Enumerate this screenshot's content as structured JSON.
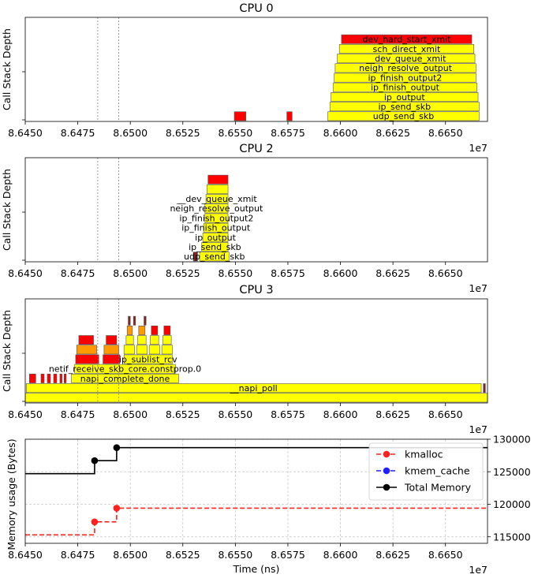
{
  "chart_data": [
    {
      "type": "flamegraph",
      "title": "CPU 0",
      "ylabel": "Call Stack Depth",
      "xlim": [
        86450000,
        86670000
      ],
      "x_offset_label": "1e7",
      "xticks": [
        "8.6450",
        "8.6475",
        "8.6500",
        "8.6525",
        "8.6550",
        "8.6575",
        "8.6600",
        "8.6625",
        "8.6650"
      ],
      "vlines": [
        86484500,
        86494500
      ],
      "bars": [
        {
          "label": "udp_send_skb",
          "start": 86594000,
          "end": 86666000,
          "depth": 0,
          "color": "#ffff00"
        },
        {
          "label": "ip_send_skb",
          "start": 86595000,
          "end": 86666000,
          "depth": 1,
          "color": "#ffff00"
        },
        {
          "label": "ip_output",
          "start": 86595500,
          "end": 86665500,
          "depth": 2,
          "color": "#ffff00"
        },
        {
          "label": "ip_finish_output",
          "start": 86596500,
          "end": 86665000,
          "depth": 3,
          "color": "#ffff00"
        },
        {
          "label": "ip_finish_output2",
          "start": 86597000,
          "end": 86664500,
          "depth": 4,
          "color": "#ffff00"
        },
        {
          "label": "neigh_resolve_output",
          "start": 86597500,
          "end": 86664500,
          "depth": 5,
          "color": "#ffff00"
        },
        {
          "label": "__dev_queue_xmit",
          "start": 86598500,
          "end": 86664000,
          "depth": 6,
          "color": "#ffff00"
        },
        {
          "label": "sch_direct_xmit",
          "start": 86599500,
          "end": 86663500,
          "depth": 7,
          "color": "#ffff00"
        },
        {
          "label": "dev_hard_start_xmit",
          "start": 86600500,
          "end": 86662500,
          "depth": 8,
          "color": "#ff0000"
        },
        {
          "label": "",
          "start": 86549500,
          "end": 86555000,
          "depth": 0,
          "color": "#ff0000"
        },
        {
          "label": "",
          "start": 86574500,
          "end": 86577000,
          "depth": 0,
          "color": "#ff0000"
        }
      ]
    },
    {
      "type": "flamegraph",
      "title": "CPU 2",
      "ylabel": "Call Stack Depth",
      "xlim": [
        86450000,
        86670000
      ],
      "x_offset_label": "1e7",
      "xticks": [
        "8.6450",
        "8.6475",
        "8.6500",
        "8.6525",
        "8.6550",
        "8.6575",
        "8.6600",
        "8.6625",
        "8.6650"
      ],
      "vlines": [
        86484500,
        86494500
      ],
      "bars": [
        {
          "label": "udp_send_skb",
          "start": 86533000,
          "end": 86547000,
          "depth": 0,
          "color": "#ffff00"
        },
        {
          "label": "ip_send_skb",
          "start": 86534000,
          "end": 86546500,
          "depth": 1,
          "color": "#ffff00"
        },
        {
          "label": "ip_output",
          "start": 86534500,
          "end": 86546500,
          "depth": 2,
          "color": "#ffff00"
        },
        {
          "label": "ip_finish_output",
          "start": 86535000,
          "end": 86546500,
          "depth": 3,
          "color": "#ffff00"
        },
        {
          "label": "ip_finish_output2",
          "start": 86535500,
          "end": 86546500,
          "depth": 4,
          "color": "#ffff00"
        },
        {
          "label": "neigh_resolve_output",
          "start": 86535500,
          "end": 86546500,
          "depth": 5,
          "color": "#ffff00"
        },
        {
          "label": "__dev_queue_xmit",
          "start": 86536000,
          "end": 86546500,
          "depth": 6,
          "color": "#ffff00"
        },
        {
          "label": "",
          "start": 86536500,
          "end": 86546500,
          "depth": 7,
          "color": "#ffff00"
        },
        {
          "label": "",
          "start": 86537000,
          "end": 86546500,
          "depth": 8,
          "color": "#ff0000"
        },
        {
          "label": "",
          "start": 86530000,
          "end": 86532000,
          "depth": 0,
          "color": "#8b2020"
        }
      ]
    },
    {
      "type": "flamegraph",
      "title": "CPU 3",
      "ylabel": "Call Stack Depth",
      "xlim": [
        86450000,
        86670000
      ],
      "x_offset_label": "1e7",
      "xticks": [
        "8.6450",
        "8.6475",
        "8.6500",
        "8.6525",
        "8.6550",
        "8.6575",
        "8.6600",
        "8.6625",
        "8.6650"
      ],
      "vlines": [
        86484500,
        86494500
      ],
      "bars": [
        {
          "label": "",
          "start": 86450000,
          "end": 86670000,
          "depth": 0,
          "color": "#ffff00"
        },
        {
          "label": "__napi_poll",
          "start": 86450500,
          "end": 86667000,
          "depth": 1,
          "color": "#ffff00"
        },
        {
          "label": "napi_complete_done",
          "start": 86472000,
          "end": 86523000,
          "depth": 2,
          "color": "#ffff00"
        },
        {
          "label": "netif_receive_skb_core.constprop.0",
          "start": 86473500,
          "end": 86521500,
          "depth": 3,
          "color": "#ffff00"
        },
        {
          "label": "ip_sublist_rcv",
          "start": 86497000,
          "end": 86520000,
          "depth": 4,
          "color": "#ffff00"
        },
        {
          "label": "",
          "start": 86474000,
          "end": 86485000,
          "depth": 4,
          "color": "#ff0000"
        },
        {
          "label": "",
          "start": 86474500,
          "end": 86484000,
          "depth": 5,
          "color": "#ff9900"
        },
        {
          "label": "",
          "start": 86475500,
          "end": 86482500,
          "depth": 6,
          "color": "#ff0000"
        },
        {
          "label": "",
          "start": 86487000,
          "end": 86495000,
          "depth": 4,
          "color": "#ff0000"
        },
        {
          "label": "",
          "start": 86487500,
          "end": 86494500,
          "depth": 5,
          "color": "#ff9900"
        },
        {
          "label": "",
          "start": 86488500,
          "end": 86493500,
          "depth": 6,
          "color": "#ff0000"
        },
        {
          "label": "",
          "start": 86497000,
          "end": 86502000,
          "depth": 5,
          "color": "#ffff00"
        },
        {
          "label": "",
          "start": 86498000,
          "end": 86501500,
          "depth": 6,
          "color": "#ffff00"
        },
        {
          "label": "",
          "start": 86498500,
          "end": 86501000,
          "depth": 7,
          "color": "#ff9900"
        },
        {
          "label": "",
          "start": 86503000,
          "end": 86508000,
          "depth": 5,
          "color": "#ffff00"
        },
        {
          "label": "",
          "start": 86503500,
          "end": 86507500,
          "depth": 6,
          "color": "#ffff00"
        },
        {
          "label": "",
          "start": 86504000,
          "end": 86507000,
          "depth": 7,
          "color": "#ff9900"
        },
        {
          "label": "",
          "start": 86509000,
          "end": 86514000,
          "depth": 5,
          "color": "#ffff00"
        },
        {
          "label": "",
          "start": 86509500,
          "end": 86513500,
          "depth": 6,
          "color": "#ffff00"
        },
        {
          "label": "",
          "start": 86510000,
          "end": 86513000,
          "depth": 7,
          "color": "#ff0000"
        },
        {
          "label": "",
          "start": 86515000,
          "end": 86520000,
          "depth": 5,
          "color": "#ffff00"
        },
        {
          "label": "",
          "start": 86515500,
          "end": 86519500,
          "depth": 6,
          "color": "#ffff00"
        },
        {
          "label": "",
          "start": 86516000,
          "end": 86519000,
          "depth": 7,
          "color": "#ff0000"
        },
        {
          "label": "",
          "start": 86452000,
          "end": 86455000,
          "depth": 2,
          "color": "#ff0000"
        },
        {
          "label": "",
          "start": 86457500,
          "end": 86459000,
          "depth": 2,
          "color": "#ff0000"
        },
        {
          "label": "",
          "start": 86460500,
          "end": 86462000,
          "depth": 2,
          "color": "#ff0000"
        },
        {
          "label": "",
          "start": 86463500,
          "end": 86465000,
          "depth": 2,
          "color": "#ff0000"
        },
        {
          "label": "",
          "start": 86466500,
          "end": 86467500,
          "depth": 2,
          "color": "#ff0000"
        },
        {
          "label": "",
          "start": 86468500,
          "end": 86469500,
          "depth": 2,
          "color": "#ff0000"
        },
        {
          "label": "",
          "start": 86499000,
          "end": 86500000,
          "depth": 8,
          "color": "#8b2020"
        },
        {
          "label": "",
          "start": 86501500,
          "end": 86502500,
          "depth": 8,
          "color": "#8b2020"
        },
        {
          "label": "",
          "start": 86506500,
          "end": 86507500,
          "depth": 8,
          "color": "#8b2020"
        },
        {
          "label": "",
          "start": 86668000,
          "end": 86669000,
          "depth": 1,
          "color": "#8b2020"
        }
      ]
    },
    {
      "type": "line",
      "step": true,
      "xlabel": "Time (ns)",
      "ylabel": "Memory usage (Bytes)",
      "xlim": [
        86450000,
        86670000
      ],
      "ylim": [
        114000,
        130000
      ],
      "x_offset_label": "1e7",
      "xticks": [
        "8.6450",
        "8.6475",
        "8.6500",
        "8.6525",
        "8.6550",
        "8.6575",
        "8.6600",
        "8.6625",
        "8.6650"
      ],
      "yticks": [
        "115000",
        "120000",
        "125000",
        "130000"
      ],
      "grid": true,
      "legend_position": "top-right",
      "series": [
        {
          "name": "kmalloc",
          "color": "#ff2020",
          "linestyle": "dashed",
          "points": [
            [
              86450000,
              115300
            ],
            [
              86483000,
              115300
            ],
            [
              86483000,
              117300
            ],
            [
              86493500,
              117300
            ],
            [
              86493500,
              119400
            ],
            [
              86670000,
              119400
            ]
          ],
          "markers": [
            [
              86483000,
              117300
            ],
            [
              86493500,
              119400
            ]
          ]
        },
        {
          "name": "kmem_cache",
          "color": "#2020ff",
          "linestyle": "dashed",
          "points": [],
          "markers": []
        },
        {
          "name": "Total Memory",
          "color": "#000000",
          "linestyle": "solid",
          "points": [
            [
              86450000,
              124700
            ],
            [
              86483000,
              124700
            ],
            [
              86483000,
              126700
            ],
            [
              86493500,
              126700
            ],
            [
              86493500,
              128700
            ],
            [
              86670000,
              128700
            ]
          ],
          "markers": [
            [
              86483000,
              126700
            ],
            [
              86493500,
              128700
            ]
          ]
        }
      ]
    }
  ]
}
